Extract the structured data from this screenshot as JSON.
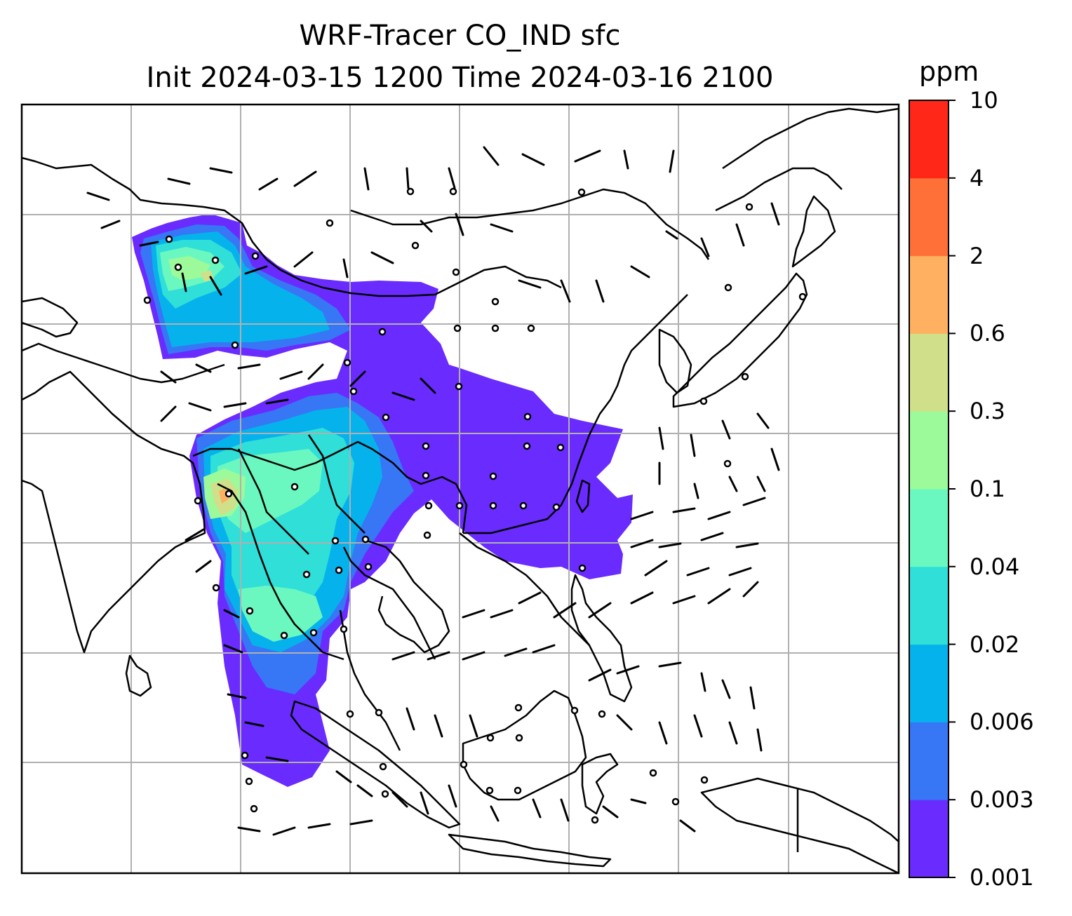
{
  "title": {
    "line1": "WRF-Tracer CO_IND sfc",
    "line2": "Init 2024-03-15 1200 Time 2024-03-16 2100"
  },
  "colorbar": {
    "unit": "ppm",
    "ticks": [
      "0.001",
      "0.003",
      "0.006",
      "0.02",
      "0.04",
      "0.1",
      "0.3",
      "0.6",
      "2",
      "4",
      "10"
    ],
    "colors": [
      "#6a2bff",
      "#3776f5",
      "#06b2ec",
      "#2fdfd8",
      "#6bf8c0",
      "#9cfa9a",
      "#d0e08a",
      "#ffb060",
      "#ff7038",
      "#ff2818"
    ]
  },
  "map": {
    "gridlines": true,
    "gridline_color": "#b0b0b0",
    "coastline_color": "#000000",
    "overlays": [
      "tracer-concentration-fill",
      "wind-barbs",
      "coastlines",
      "country-borders"
    ],
    "region": "South and East Asia, Maritime Continent"
  }
}
